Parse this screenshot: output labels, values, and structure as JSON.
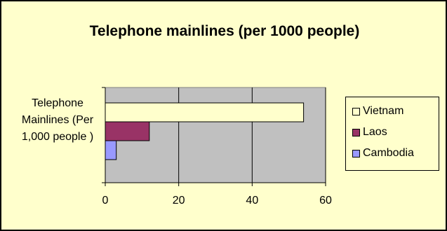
{
  "chart_data": {
    "type": "bar",
    "orientation": "horizontal",
    "title": "Telephone mainlines (per 1000 people)",
    "category_label": "Telephone Mainlines (Per 1,000 people )",
    "categories": [
      "Telephone Mainlines (Per 1,000 people )"
    ],
    "series": [
      {
        "name": "Vietnam",
        "values": [
          54
        ],
        "color": "#FFFFCC"
      },
      {
        "name": "Laos",
        "values": [
          12
        ],
        "color": "#993366"
      },
      {
        "name": "Cambodia",
        "values": [
          3
        ],
        "color": "#9999FF"
      }
    ],
    "xlim": [
      0,
      60
    ],
    "xticks": [
      0,
      20,
      40,
      60
    ],
    "xtick_labels": [
      "0",
      "20",
      "40",
      "60"
    ],
    "plot_background": "#C0C0C0",
    "page_background": "#FFFFCC",
    "grid": true,
    "legend_position": "right"
  }
}
